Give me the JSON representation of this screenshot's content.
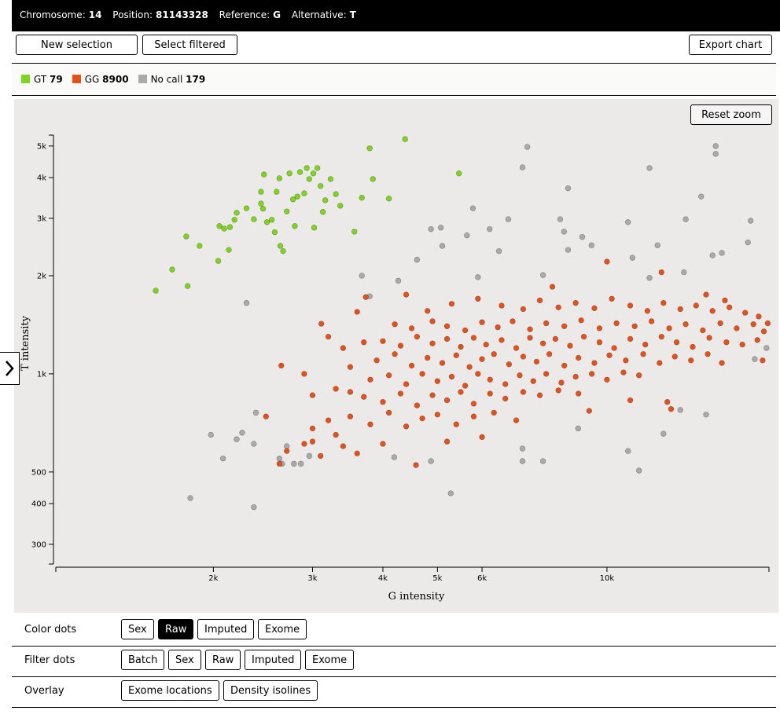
{
  "header": {
    "chromosome_label": "Chromosome:",
    "chromosome": 14,
    "position_label": "Position:",
    "position": 81143328,
    "reference_label": "Reference:",
    "reference": "G",
    "alternative_label": "Alternative:",
    "alternative": "T"
  },
  "toolbar": {
    "buttons": [
      "New selection",
      "Select filtered"
    ],
    "export": "Export chart"
  },
  "chart_data": {
    "type": "scatter",
    "reset_zoom": "Reset zoom",
    "x_label": "G intensity",
    "y_label": "T intensity",
    "xscale": "log",
    "yscale": "log",
    "xlim": [
      1050,
      19400
    ],
    "ylim": [
      261,
      5400
    ],
    "xticks": [
      {
        "value": 2000,
        "label": "2k"
      },
      {
        "value": 3000,
        "label": "3k"
      },
      {
        "value": 4000,
        "label": "4k"
      },
      {
        "value": 5000,
        "label": "5k"
      },
      {
        "value": 6000,
        "label": "6k"
      },
      {
        "value": 10000,
        "label": "10k"
      }
    ],
    "yticks": [
      {
        "value": 5000,
        "label": "5k"
      },
      {
        "value": 4000,
        "label": "4k"
      },
      {
        "value": 3000,
        "label": "3k"
      },
      {
        "value": 2000,
        "label": "2k"
      },
      {
        "value": 1000,
        "label": "1k"
      },
      500,
      400,
      300
    ],
    "series": [
      {
        "name": "GT",
        "count": 79,
        "color": "#7ed61c",
        "x": [
          1580,
          1690,
          1800,
          1790,
          1890,
          2040,
          2050,
          2090,
          2130,
          2140,
          2180,
          2200,
          2290,
          2360,
          2430,
          2430,
          2450,
          2460,
          2490,
          2540,
          2570,
          2590,
          2620,
          2630,
          2660,
          2700,
          2730,
          2770,
          2790,
          2820,
          2850,
          2900,
          2930,
          2960,
          3010,
          3020,
          3060,
          3100,
          3130,
          3160,
          3230,
          3300,
          3360,
          3560,
          3670,
          3790,
          3840,
          4100,
          4380,
          5460
        ],
        "values": [
          1800,
          2090,
          1860,
          2640,
          2470,
          2220,
          2840,
          2790,
          2400,
          2820,
          2970,
          3120,
          3220,
          2980,
          3620,
          3330,
          3210,
          4090,
          2920,
          2970,
          2720,
          3620,
          3980,
          2470,
          2380,
          3150,
          4120,
          3430,
          2840,
          3500,
          4160,
          3580,
          4280,
          3960,
          4120,
          2810,
          4280,
          3770,
          3140,
          3410,
          3960,
          3560,
          3280,
          2730,
          3470,
          4920,
          3960,
          3450,
          5250,
          4120
        ]
      },
      {
        "name": "GG",
        "count": 8900,
        "color": "#e8501a",
        "x": [
          4800,
          5300,
          5900,
          6500,
          7100,
          7600,
          8200,
          8800,
          9500,
          10200,
          11000,
          11800,
          12600,
          13500,
          14400,
          15400,
          16500,
          17600,
          18600,
          16200,
          4200,
          4500,
          4900,
          5200,
          5600,
          6000,
          6400,
          6800,
          7300,
          7800,
          8400,
          9000,
          9700,
          10400,
          11200,
          12000,
          12900,
          13800,
          14800,
          15900,
          17000,
          18200,
          19000,
          4000,
          4300,
          4600,
          4900,
          5200,
          5500,
          5800,
          6100,
          6500,
          6900,
          7300,
          7700,
          8100,
          8600,
          9100,
          9700,
          10300,
          11000,
          11700,
          12500,
          13300,
          14200,
          15200,
          16300,
          17400,
          18500,
          3900,
          4200,
          4500,
          4800,
          5100,
          5400,
          5700,
          6000,
          6300,
          6700,
          7100,
          7500,
          7900,
          8400,
          8900,
          9500,
          10100,
          10800,
          11600,
          12400,
          13200,
          14100,
          15100,
          16000,
          3800,
          4100,
          4400,
          4700,
          5000,
          5300,
          5600,
          5900,
          6200,
          6600,
          7000,
          7400,
          7800,
          8300,
          8800,
          9400,
          10000,
          10700,
          11400,
          3700,
          4000,
          4300,
          4600,
          4900,
          5200,
          5500,
          5800,
          6200,
          6600,
          7100,
          7600,
          8200,
          8900,
          3500,
          3200,
          3500,
          3800,
          4100,
          4400,
          4700,
          5000,
          5400,
          5800,
          6300,
          6900,
          3000,
          3300,
          2480,
          2620,
          2700,
          2900,
          3100,
          3400,
          3600,
          4580,
          5200,
          6000,
          4000,
          3000,
          2640,
          3110,
          3730,
          3200,
          3400,
          2900,
          3000,
          3300,
          3600,
          4400,
          10000,
          8000,
          12500,
          15000,
          19300,
          18900,
          12800,
          11000,
          9300,
          13000,
          3500,
          3700
        ],
        "values": [
          1560,
          1640,
          1700,
          1620,
          1580,
          1680,
          1600,
          1650,
          1590,
          1700,
          1620,
          1560,
          1650,
          1580,
          1620,
          1560,
          1600,
          1540,
          1500,
          1680,
          1420,
          1380,
          1450,
          1400,
          1360,
          1440,
          1390,
          1450,
          1370,
          1430,
          1400,
          1460,
          1380,
          1430,
          1400,
          1450,
          1380,
          1420,
          1360,
          1430,
          1380,
          1420,
          1350,
          1260,
          1220,
          1300,
          1240,
          1280,
          1210,
          1290,
          1230,
          1270,
          1200,
          1290,
          1240,
          1280,
          1220,
          1300,
          1250,
          1200,
          1280,
          1230,
          1300,
          1250,
          1210,
          1290,
          1250,
          1230,
          1270,
          1100,
          1150,
          1060,
          1120,
          1080,
          1140,
          1050,
          1110,
          1150,
          1070,
          1130,
          1090,
          1150,
          1060,
          1120,
          1080,
          1140,
          1100,
          1150,
          1080,
          1130,
          1100,
          1150,
          1080,
          960,
          990,
          930,
          1000,
          950,
          980,
          920,
          1000,
          960,
          930,
          990,
          950,
          1000,
          940,
          980,
          1000,
          960,
          1010,
          990,
          850,
          820,
          870,
          800,
          860,
          830,
          880,
          810,
          870,
          840,
          880,
          860,
          890,
          870,
          880,
          720,
          740,
          700,
          760,
          690,
          730,
          750,
          700,
          740,
          760,
          720,
          680,
          650,
          740,
          530,
          580,
          610,
          560,
          600,
          570,
          525,
          620,
          640,
          610,
          620,
          1060,
          1425,
          1720,
          1300,
          1200,
          1000,
          860,
          900,
          1550,
          1750,
          2210,
          1850,
          2050,
          1750,
          1430,
          1100,
          820,
          830,
          770,
          780,
          1050,
          1250
        ]
      },
      {
        "name": "No call",
        "count": 179,
        "color": "#aaaaaa",
        "x": [
          1820,
          1980,
          2080,
          2250,
          2200,
          2290,
          2360,
          2360,
          2380,
          2620,
          2650,
          2700,
          2780,
          2860,
          2960,
          3670,
          3790,
          4260,
          4600,
          4870,
          5070,
          5100,
          5640,
          5780,
          5900,
          6190,
          6430,
          6680,
          7080,
          7220,
          7700,
          8260,
          8390,
          8530,
          8530,
          9040,
          9390,
          10900,
          11100,
          11900,
          11900,
          12300,
          13700,
          13800,
          14700,
          15600,
          15600,
          15400,
          16000,
          17800,
          18000,
          5280,
          11400,
          10900,
          7700,
          7080,
          4870,
          4190,
          12600,
          13500,
          15000,
          18300,
          19200,
          7080,
          8890
        ],
        "values": [
          416,
          650,
          550,
          660,
          630,
          1650,
          610,
          390,
          760,
          550,
          530,
          600,
          530,
          530,
          560,
          2000,
          1730,
          1930,
          2240,
          2780,
          2810,
          2470,
          2660,
          3220,
          1980,
          2780,
          2380,
          2980,
          4300,
          4970,
          2010,
          2980,
          2730,
          3710,
          2400,
          2630,
          2480,
          2920,
          2270,
          4280,
          1970,
          2480,
          2050,
          2980,
          3500,
          5000,
          4730,
          2310,
          2350,
          2530,
          2950,
          430,
          505,
          580,
          540,
          540,
          540,
          555,
          655,
          775,
          750,
          1110,
          1200,
          590,
          680
        ]
      }
    ]
  },
  "options": [
    {
      "label": "Color dots",
      "buttons": [
        "Sex",
        "Raw",
        "Imputed",
        "Exome"
      ],
      "active": 1
    },
    {
      "label": "Filter dots",
      "buttons": [
        "Batch",
        "Sex",
        "Raw",
        "Imputed",
        "Exome"
      ]
    },
    {
      "label": "Overlay",
      "buttons": [
        "Exome locations",
        "Density isolines"
      ]
    }
  ]
}
